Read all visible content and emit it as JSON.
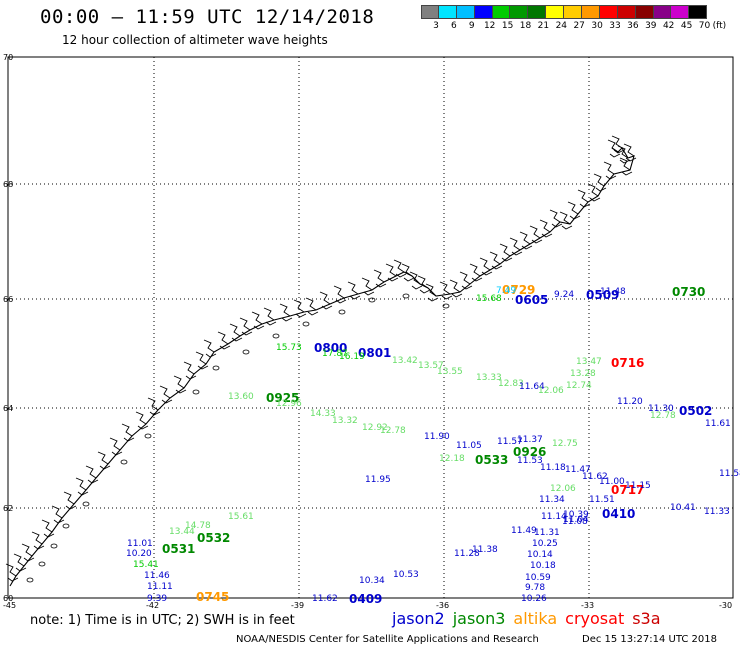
{
  "header": {
    "title": "00:00 – 11:59 UTC 12/14/2018",
    "subtitle": "12 hour collection of altimeter wave heights"
  },
  "color_scale": {
    "unit": "(ft)",
    "labels": [
      "3",
      "6",
      "9",
      "12",
      "15",
      "18",
      "21",
      "24",
      "27",
      "30",
      "33",
      "36",
      "39",
      "42",
      "45",
      "70"
    ],
    "colors": [
      "#808080",
      "#00e5ff",
      "#00bfff",
      "#0000ff",
      "#00cc00",
      "#009900",
      "#007700",
      "#ffff00",
      "#ffcc00",
      "#ff9900",
      "#ff0000",
      "#cc0000",
      "#880000",
      "#880088",
      "#cc00cc",
      "#000000"
    ]
  },
  "map": {
    "lat_ticks": [
      "70",
      "68",
      "66",
      "64",
      "62",
      "60"
    ],
    "lon_ticks": [
      "-45",
      "-42",
      "-39",
      "-36",
      "-33",
      "-30"
    ],
    "track_ids": [
      {
        "id": "0729",
        "color": "#ff9900"
      },
      {
        "id": "0605",
        "color": "#0000cc"
      },
      {
        "id": "0509",
        "color": "#0000cc"
      },
      {
        "id": "0730",
        "color": "#008800"
      },
      {
        "id": "0800",
        "color": "#0000cc"
      },
      {
        "id": "0801",
        "color": "#0000cc"
      },
      {
        "id": "0716",
        "color": "#ff0000"
      },
      {
        "id": "0925",
        "color": "#008800"
      },
      {
        "id": "0502",
        "color": "#0000cc"
      },
      {
        "id": "0926",
        "color": "#008800"
      },
      {
        "id": "0533",
        "color": "#008800"
      },
      {
        "id": "0717",
        "color": "#ff0000"
      },
      {
        "id": "0410",
        "color": "#0000cc"
      },
      {
        "id": "0532",
        "color": "#008800"
      },
      {
        "id": "0531",
        "color": "#008800"
      },
      {
        "id": "0745",
        "color": "#ff9900"
      },
      {
        "id": "0409",
        "color": "#0000cc"
      }
    ],
    "wave_heights": [
      {
        "v": "7.49",
        "c": "#00ccff"
      },
      {
        "v": "15.68",
        "c": "#00cc00"
      },
      {
        "v": "9.24",
        "c": "#0000cc"
      },
      {
        "v": "11.48",
        "c": "#0000cc"
      },
      {
        "v": "15.73",
        "c": "#00cc00"
      },
      {
        "v": "17.87",
        "c": "#00cc00"
      },
      {
        "v": "16.19",
        "c": "#00cc00"
      },
      {
        "v": "13.42",
        "c": "#66dd66"
      },
      {
        "v": "13.57",
        "c": "#66dd66"
      },
      {
        "v": "13.55",
        "c": "#66dd66"
      },
      {
        "v": "13.33",
        "c": "#66dd66"
      },
      {
        "v": "12.83",
        "c": "#66dd66"
      },
      {
        "v": "11.64",
        "c": "#0000cc"
      },
      {
        "v": "13.47",
        "c": "#66dd66"
      },
      {
        "v": "13.28",
        "c": "#66dd66"
      },
      {
        "v": "12.74",
        "c": "#66dd66"
      },
      {
        "v": "12.06",
        "c": "#66dd66"
      },
      {
        "v": "13.60",
        "c": "#66dd66"
      },
      {
        "v": "12.96",
        "c": "#66dd66"
      },
      {
        "v": "14.33",
        "c": "#66dd66"
      },
      {
        "v": "13.32",
        "c": "#66dd66"
      },
      {
        "v": "12.92",
        "c": "#66dd66"
      },
      {
        "v": "12.78",
        "c": "#66dd66"
      },
      {
        "v": "11.20",
        "c": "#0000cc"
      },
      {
        "v": "11.30",
        "c": "#0000cc"
      },
      {
        "v": "12.78",
        "c": "#66dd66"
      },
      {
        "v": "11.61",
        "c": "#0000cc"
      },
      {
        "v": "11.90",
        "c": "#0000cc"
      },
      {
        "v": "11.05",
        "c": "#0000cc"
      },
      {
        "v": "11.57",
        "c": "#0000cc"
      },
      {
        "v": "11.37",
        "c": "#0000cc"
      },
      {
        "v": "12.75",
        "c": "#66dd66"
      },
      {
        "v": "11.53",
        "c": "#0000cc"
      },
      {
        "v": "11.18",
        "c": "#0000cc"
      },
      {
        "v": "11.47",
        "c": "#0000cc"
      },
      {
        "v": "11.95",
        "c": "#0000cc"
      },
      {
        "v": "12.18",
        "c": "#66dd66"
      },
      {
        "v": "12.06",
        "c": "#66dd66"
      },
      {
        "v": "11.62",
        "c": "#0000cc"
      },
      {
        "v": "11.00",
        "c": "#0000cc"
      },
      {
        "v": "11.15",
        "c": "#0000cc"
      },
      {
        "v": "11.58",
        "c": "#0000cc"
      },
      {
        "v": "11.34",
        "c": "#0000cc"
      },
      {
        "v": "11.51",
        "c": "#0000cc"
      },
      {
        "v": "10.41",
        "c": "#0000cc"
      },
      {
        "v": "11.33",
        "c": "#0000cc"
      },
      {
        "v": "15.61",
        "c": "#66dd66"
      },
      {
        "v": "11.04",
        "c": "#0000cc"
      },
      {
        "v": "10.39",
        "c": "#0000cc"
      },
      {
        "v": "11.14",
        "c": "#0000cc"
      },
      {
        "v": "11.08",
        "c": "#0000cc"
      },
      {
        "v": "11.49",
        "c": "#0000cc"
      },
      {
        "v": "11.31",
        "c": "#0000cc"
      },
      {
        "v": "10.25",
        "c": "#0000cc"
      },
      {
        "v": "10.14",
        "c": "#0000cc"
      },
      {
        "v": "10.18",
        "c": "#0000cc"
      },
      {
        "v": "10.59",
        "c": "#0000cc"
      },
      {
        "v": "9.78",
        "c": "#0000cc"
      },
      {
        "v": "10.26",
        "c": "#0000cc"
      },
      {
        "v": "11.01",
        "c": "#0000cc"
      },
      {
        "v": "10.20",
        "c": "#0000cc"
      },
      {
        "v": "15.41",
        "c": "#00cc00"
      },
      {
        "v": "11.46",
        "c": "#0000cc"
      },
      {
        "v": "11.11",
        "c": "#0000cc"
      },
      {
        "v": "9.39",
        "c": "#0000cc"
      },
      {
        "v": "11.62",
        "c": "#0000cc"
      },
      {
        "v": "10.34",
        "c": "#0000cc"
      },
      {
        "v": "10.53",
        "c": "#0000cc"
      },
      {
        "v": "11.28",
        "c": "#0000cc"
      },
      {
        "v": "11.38",
        "c": "#0000cc"
      },
      {
        "v": "13.44",
        "c": "#66dd66"
      },
      {
        "v": "14.78",
        "c": "#66dd66"
      }
    ]
  },
  "footer": {
    "note": "note:  1) Time is in UTC;  2) SWH is in feet",
    "satellites": [
      {
        "name": "jason2",
        "color": "#0000cc"
      },
      {
        "name": "jason3",
        "color": "#008800"
      },
      {
        "name": "altika",
        "color": "#ff9900"
      },
      {
        "name": "cryosat",
        "color": "#ff0000"
      },
      {
        "name": "s3a",
        "color": "#cc0000"
      }
    ],
    "credit": "NOAA/NESDIS Center for Satellite Applications and Research",
    "timestamp": "Dec 15 13:27:14 UTC 2018"
  }
}
